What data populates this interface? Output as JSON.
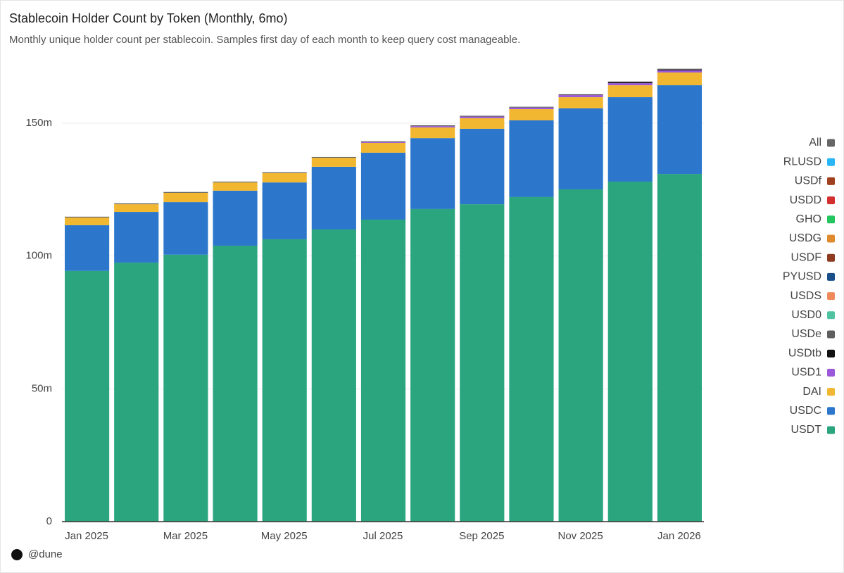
{
  "chart_data": {
    "type": "stacked_bar",
    "title": "Stablecoin Holder Count by Token (Monthly, 6mo)",
    "subtitle": "Monthly unique holder count per stablecoin. Samples first day of each month to keep query cost manageable.",
    "categories": [
      "Jan 2025",
      null,
      "Mar 2025",
      null,
      "May 2025",
      null,
      "Jul 2025",
      null,
      "Sep 2025",
      null,
      "Nov 2025",
      null,
      "Jan 2026"
    ],
    "ylim": [
      0,
      175000000
    ],
    "yticks": [
      0,
      {
        "value": 50000000,
        "label": "50m"
      },
      {
        "value": 100000000,
        "label": "100m"
      },
      {
        "value": 150000000,
        "label": "150m"
      }
    ],
    "grid": true,
    "legend": "right",
    "series": [
      {
        "name": "USDT",
        "color": "#2aa57e",
        "values": [
          94400000,
          97500000,
          100500000,
          103900000,
          106300000,
          110000000,
          113700000,
          117700000,
          119500000,
          122200000,
          125100000,
          128000000,
          130900000
        ]
      },
      {
        "name": "USDC",
        "color": "#2c77cc",
        "values": [
          17200000,
          19100000,
          19800000,
          20700000,
          21400000,
          23600000,
          25200000,
          26700000,
          28400000,
          28900000,
          30500000,
          31800000,
          33400000
        ]
      },
      {
        "name": "DAI",
        "color": "#f2b731",
        "values": [
          2900000,
          2900000,
          3500000,
          3100000,
          3500000,
          3400000,
          3700000,
          4000000,
          4000000,
          4200000,
          4200000,
          4500000,
          4800000
        ]
      },
      {
        "name": "USD1",
        "color": "#9b59d9",
        "values": [
          0,
          0,
          0,
          0,
          0,
          0,
          300000,
          500000,
          600000,
          600000,
          800000,
          800000,
          800000
        ]
      },
      {
        "name": "USDtb",
        "color": "#111111",
        "values": [
          0,
          0,
          0,
          0,
          0,
          0,
          0,
          0,
          0,
          0,
          0,
          300000,
          300000
        ]
      },
      {
        "name": "USDe",
        "color": "#5e5e5e",
        "values": [
          300000,
          300000,
          300000,
          300000,
          300000,
          300000,
          300000,
          300000,
          300000,
          300000,
          300000,
          300000,
          300000
        ]
      },
      {
        "name": "USD0",
        "color": "#4fc3a1",
        "values": [
          0,
          0,
          0,
          0,
          0,
          0,
          0,
          0,
          0,
          0,
          0,
          0,
          0
        ]
      },
      {
        "name": "USDS",
        "color": "#f08a5d",
        "values": [
          0,
          0,
          0,
          0,
          0,
          0,
          0,
          0,
          0,
          0,
          0,
          0,
          0
        ]
      },
      {
        "name": "PYUSD",
        "color": "#1a4f8a",
        "values": [
          0,
          0,
          0,
          0,
          0,
          0,
          0,
          0,
          0,
          0,
          0,
          0,
          0
        ]
      },
      {
        "name": "USDF",
        "color": "#8e3b1f",
        "values": [
          0,
          0,
          0,
          0,
          0,
          0,
          0,
          0,
          0,
          0,
          0,
          0,
          0
        ]
      },
      {
        "name": "USDG",
        "color": "#e08a2e",
        "values": [
          0,
          0,
          0,
          0,
          0,
          0,
          0,
          0,
          0,
          0,
          0,
          0,
          0
        ]
      },
      {
        "name": "GHO",
        "color": "#22c55e",
        "values": [
          0,
          0,
          0,
          0,
          0,
          0,
          0,
          0,
          0,
          0,
          0,
          0,
          0
        ]
      },
      {
        "name": "USDD",
        "color": "#d32f2f",
        "values": [
          0,
          0,
          0,
          0,
          0,
          0,
          0,
          0,
          0,
          0,
          0,
          0,
          0
        ]
      },
      {
        "name": "USDf",
        "color": "#a0401f",
        "values": [
          0,
          0,
          0,
          0,
          0,
          0,
          0,
          0,
          0,
          0,
          0,
          0,
          0
        ]
      },
      {
        "name": "RLUSD",
        "color": "#29b6f6",
        "values": [
          0,
          0,
          0,
          0,
          0,
          0,
          0,
          0,
          0,
          0,
          0,
          0,
          0
        ]
      },
      {
        "name": "All",
        "color": "#666666",
        "values": [
          0,
          0,
          0,
          0,
          0,
          0,
          0,
          0,
          0,
          0,
          0,
          0,
          0
        ]
      }
    ]
  },
  "brand": "@dune"
}
